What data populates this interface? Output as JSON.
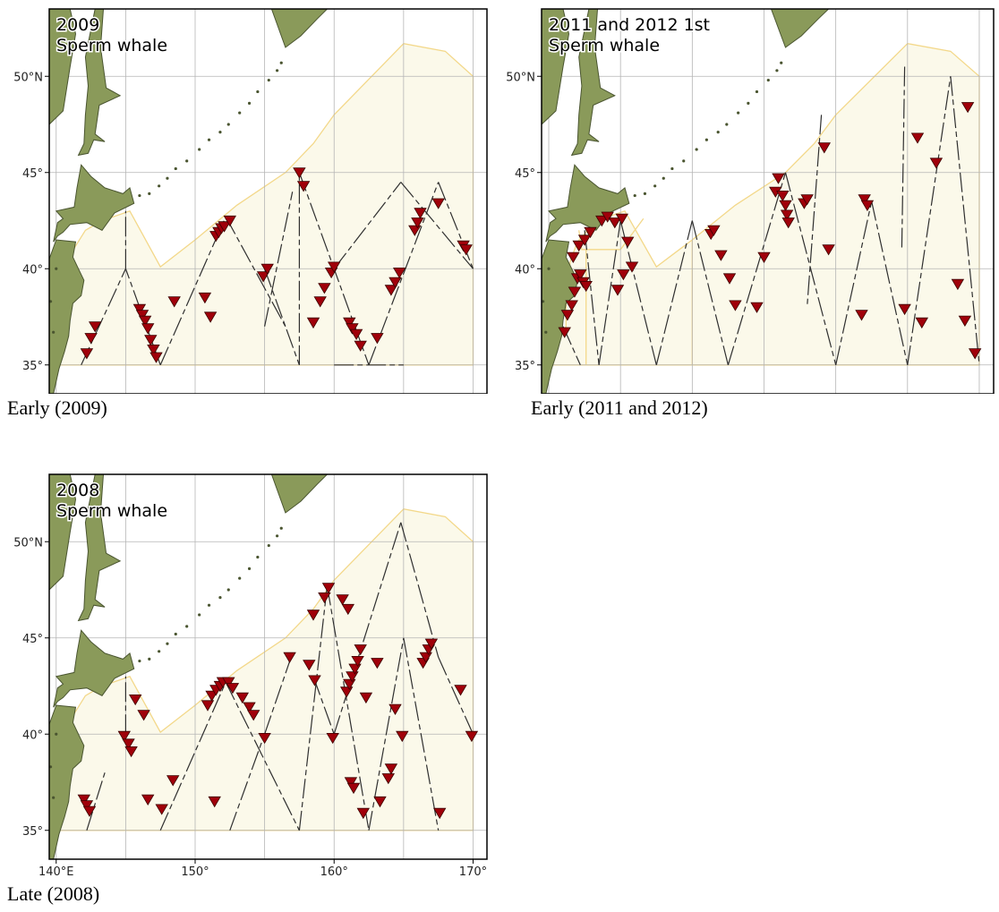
{
  "legend": {
    "marker": "Sperm whale sighting",
    "marker_color": "#a0000a",
    "survey_area_color": "#fbf9ea",
    "survey_area_border": "#f3d88a",
    "land_color": "#8a9a5a"
  },
  "axes": {
    "x_ticks": [
      140,
      150,
      160,
      170
    ],
    "x_tick_labels": [
      "140°E",
      "150°",
      "160°",
      "170°"
    ],
    "y_ticks": [
      35,
      40,
      45,
      50
    ],
    "y_tick_labels": [
      "35°",
      "40°",
      "45°",
      "50°N"
    ],
    "lon_range": [
      139.5,
      171
    ],
    "lat_range": [
      33.5,
      53.5
    ]
  },
  "panels": [
    {
      "id": "early-2009",
      "year_label": "2009",
      "species_label": "Sperm whale",
      "caption": "Early (2009)",
      "area": "main",
      "tracks": [
        [
          [
            141.8,
            35
          ],
          [
            145,
            40
          ],
          [
            147.5,
            35
          ]
        ],
        [
          [
            147.5,
            35
          ],
          [
            152.2,
            42.7
          ]
        ],
        [
          [
            145,
            40
          ],
          [
            145,
            43
          ]
        ],
        [
          [
            152.2,
            42.7
          ],
          [
            156.5,
            37
          ]
        ],
        [
          [
            155,
            40
          ],
          [
            157.5,
            35
          ]
        ],
        [
          [
            157.5,
            35
          ],
          [
            157.5,
            45
          ]
        ],
        [
          [
            157.5,
            45
          ],
          [
            162.5,
            35
          ]
        ],
        [
          [
            160,
            40
          ],
          [
            164.8,
            44.5
          ]
        ],
        [
          [
            162.5,
            35
          ],
          [
            167.5,
            44.5
          ]
        ],
        [
          [
            164.8,
            44.5
          ],
          [
            170,
            40
          ]
        ],
        [
          [
            167.5,
            44.5
          ],
          [
            170,
            40
          ]
        ],
        [
          [
            160,
            35
          ],
          [
            165,
            35
          ]
        ],
        [
          [
            155,
            37
          ],
          [
            157,
            44
          ]
        ]
      ],
      "sightings": [
        [
          142.2,
          35.6
        ],
        [
          142.5,
          36.4
        ],
        [
          142.8,
          37.0
        ],
        [
          146.0,
          37.9
        ],
        [
          146.2,
          37.6
        ],
        [
          146.4,
          37.3
        ],
        [
          146.6,
          36.9
        ],
        [
          146.8,
          36.3
        ],
        [
          147.0,
          35.8
        ],
        [
          147.2,
          35.4
        ],
        [
          148.5,
          38.3
        ],
        [
          150.7,
          38.5
        ],
        [
          151.1,
          37.5
        ],
        [
          151.5,
          41.7
        ],
        [
          151.7,
          41.9
        ],
        [
          151.9,
          42.1
        ],
        [
          152.1,
          42.2
        ],
        [
          152.5,
          42.5
        ],
        [
          154.9,
          39.6
        ],
        [
          155.2,
          40.0
        ],
        [
          157.5,
          45.0
        ],
        [
          157.8,
          44.3
        ],
        [
          158.5,
          37.2
        ],
        [
          159.0,
          38.3
        ],
        [
          159.3,
          39.0
        ],
        [
          159.8,
          39.8
        ],
        [
          160.0,
          40.1
        ],
        [
          161.1,
          37.2
        ],
        [
          161.3,
          36.9
        ],
        [
          161.6,
          36.6
        ],
        [
          161.9,
          36.0
        ],
        [
          163.1,
          36.4
        ],
        [
          164.1,
          38.9
        ],
        [
          164.4,
          39.3
        ],
        [
          164.7,
          39.8
        ],
        [
          165.8,
          42.0
        ],
        [
          166.0,
          42.4
        ],
        [
          166.2,
          42.9
        ],
        [
          167.5,
          43.4
        ],
        [
          169.3,
          41.2
        ],
        [
          169.5,
          41.0
        ]
      ]
    },
    {
      "id": "early-2011-2012",
      "year_label": "2011 and 2012 1st",
      "species_label": "Sperm whale",
      "caption": "Early (2011 and 2012)",
      "area": "early",
      "tracks": [
        [
          [
            141,
            37
          ],
          [
            142.2,
            35
          ],
          [
            141,
            37
          ]
        ],
        [
          [
            142.5,
            42
          ],
          [
            143.5,
            35
          ]
        ],
        [
          [
            143.5,
            35
          ],
          [
            145,
            42.5
          ]
        ],
        [
          [
            145,
            42.5
          ],
          [
            147.5,
            35
          ]
        ],
        [
          [
            147.5,
            35
          ],
          [
            150,
            42.5
          ]
        ],
        [
          [
            150,
            42.5
          ],
          [
            152.5,
            35
          ]
        ],
        [
          [
            152.5,
            35
          ],
          [
            156.5,
            45
          ]
        ],
        [
          [
            156.5,
            45
          ],
          [
            160,
            35
          ]
        ],
        [
          [
            160,
            35
          ],
          [
            162.5,
            43.5
          ]
        ],
        [
          [
            162.5,
            43.5
          ],
          [
            165,
            35
          ]
        ],
        [
          [
            165,
            35
          ],
          [
            168,
            50
          ]
        ],
        [
          [
            168,
            50
          ],
          [
            170,
            35
          ]
        ],
        [
          [
            159,
            48
          ],
          [
            158,
            38
          ]
        ],
        [
          [
            164.8,
            50.5
          ],
          [
            164.6,
            41
          ]
        ]
      ],
      "sightings": [
        [
          141.3,
          37.6
        ],
        [
          141.6,
          38.1
        ],
        [
          141.8,
          38.8
        ],
        [
          142.0,
          39.5
        ],
        [
          142.2,
          39.7
        ],
        [
          142.4,
          39.3
        ],
        [
          141.1,
          36.7
        ],
        [
          141.7,
          40.6
        ],
        [
          142.1,
          41.2
        ],
        [
          142.5,
          41.5
        ],
        [
          142.9,
          41.9
        ],
        [
          143.7,
          42.5
        ],
        [
          144.1,
          42.7
        ],
        [
          144.6,
          42.4
        ],
        [
          145.1,
          42.6
        ],
        [
          145.5,
          41.4
        ],
        [
          145.8,
          40.1
        ],
        [
          145.2,
          39.7
        ],
        [
          142.6,
          39.1
        ],
        [
          144.8,
          38.9
        ],
        [
          151.3,
          41.8
        ],
        [
          151.5,
          42.0
        ],
        [
          152.0,
          40.7
        ],
        [
          152.6,
          39.5
        ],
        [
          153.0,
          38.1
        ],
        [
          154.5,
          38.0
        ],
        [
          155.0,
          40.6
        ],
        [
          155.8,
          44.0
        ],
        [
          156.0,
          44.7
        ],
        [
          156.3,
          43.8
        ],
        [
          156.5,
          43.3
        ],
        [
          156.6,
          42.8
        ],
        [
          156.7,
          42.4
        ],
        [
          157.8,
          43.4
        ],
        [
          158.0,
          43.6
        ],
        [
          159.2,
          46.3
        ],
        [
          159.5,
          41.0
        ],
        [
          162.0,
          43.6
        ],
        [
          162.2,
          43.3
        ],
        [
          161.8,
          37.6
        ],
        [
          164.8,
          37.9
        ],
        [
          165.7,
          46.8
        ],
        [
          166.0,
          37.2
        ],
        [
          167.0,
          45.5
        ],
        [
          168.5,
          39.2
        ],
        [
          169.0,
          37.3
        ],
        [
          169.2,
          48.4
        ],
        [
          169.7,
          35.6
        ]
      ]
    },
    {
      "id": "late-2008",
      "year_label": "2008",
      "species_label": "Sperm whale",
      "caption": "Late (2008)",
      "area": "main",
      "tracks": [
        [
          [
            142.2,
            35
          ],
          [
            143.5,
            38
          ]
        ],
        [
          [
            145,
            40
          ],
          [
            145,
            43
          ]
        ],
        [
          [
            147.5,
            35
          ],
          [
            152.2,
            42.7
          ]
        ],
        [
          [
            152.2,
            42.7
          ],
          [
            157.5,
            35
          ]
        ],
        [
          [
            152.5,
            35
          ],
          [
            155,
            40
          ]
        ],
        [
          [
            157.5,
            35
          ],
          [
            159.5,
            47.7
          ]
        ],
        [
          [
            159.5,
            47.7
          ],
          [
            162.5,
            35
          ]
        ],
        [
          [
            162.5,
            35
          ],
          [
            165,
            45
          ]
        ],
        [
          [
            165,
            45
          ],
          [
            167.5,
            35
          ]
        ],
        [
          [
            164.8,
            51
          ],
          [
            167.5,
            44
          ]
        ],
        [
          [
            167.5,
            44
          ],
          [
            170,
            40
          ]
        ],
        [
          [
            160,
            40
          ],
          [
            164.8,
            51
          ]
        ],
        [
          [
            155,
            40
          ],
          [
            157,
            44.2
          ]
        ],
        [
          [
            158.5,
            43
          ],
          [
            160,
            40
          ]
        ]
      ],
      "sightings": [
        [
          142.0,
          36.6
        ],
        [
          142.2,
          36.3
        ],
        [
          142.4,
          36.0
        ],
        [
          144.9,
          39.9
        ],
        [
          145.2,
          39.5
        ],
        [
          145.4,
          39.1
        ],
        [
          145.7,
          41.8
        ],
        [
          146.3,
          41.0
        ],
        [
          146.6,
          36.6
        ],
        [
          147.6,
          36.1
        ],
        [
          148.4,
          37.6
        ],
        [
          150.9,
          41.5
        ],
        [
          151.2,
          42.0
        ],
        [
          151.4,
          36.5
        ],
        [
          151.5,
          42.3
        ],
        [
          151.8,
          42.5
        ],
        [
          152.0,
          42.7
        ],
        [
          152.4,
          42.7
        ],
        [
          152.7,
          42.4
        ],
        [
          153.4,
          41.9
        ],
        [
          153.9,
          41.4
        ],
        [
          154.2,
          41.0
        ],
        [
          155.0,
          39.8
        ],
        [
          156.8,
          44.0
        ],
        [
          158.2,
          43.6
        ],
        [
          158.6,
          42.8
        ],
        [
          158.5,
          46.2
        ],
        [
          159.3,
          47.1
        ],
        [
          159.6,
          47.6
        ],
        [
          159.9,
          39.8
        ],
        [
          160.6,
          47.0
        ],
        [
          161.0,
          46.5
        ],
        [
          160.9,
          42.2
        ],
        [
          161.1,
          42.6
        ],
        [
          161.3,
          43.0
        ],
        [
          161.5,
          43.4
        ],
        [
          161.7,
          43.8
        ],
        [
          161.9,
          44.4
        ],
        [
          161.2,
          37.5
        ],
        [
          161.4,
          37.2
        ],
        [
          162.1,
          35.9
        ],
        [
          162.3,
          41.9
        ],
        [
          163.1,
          43.7
        ],
        [
          163.3,
          36.5
        ],
        [
          163.9,
          37.7
        ],
        [
          164.1,
          38.2
        ],
        [
          164.4,
          41.3
        ],
        [
          164.9,
          39.9
        ],
        [
          166.4,
          43.7
        ],
        [
          166.6,
          44.0
        ],
        [
          166.8,
          44.4
        ],
        [
          167.0,
          44.7
        ],
        [
          167.6,
          35.9
        ],
        [
          169.1,
          42.3
        ],
        [
          169.9,
          39.9
        ]
      ]
    }
  ]
}
